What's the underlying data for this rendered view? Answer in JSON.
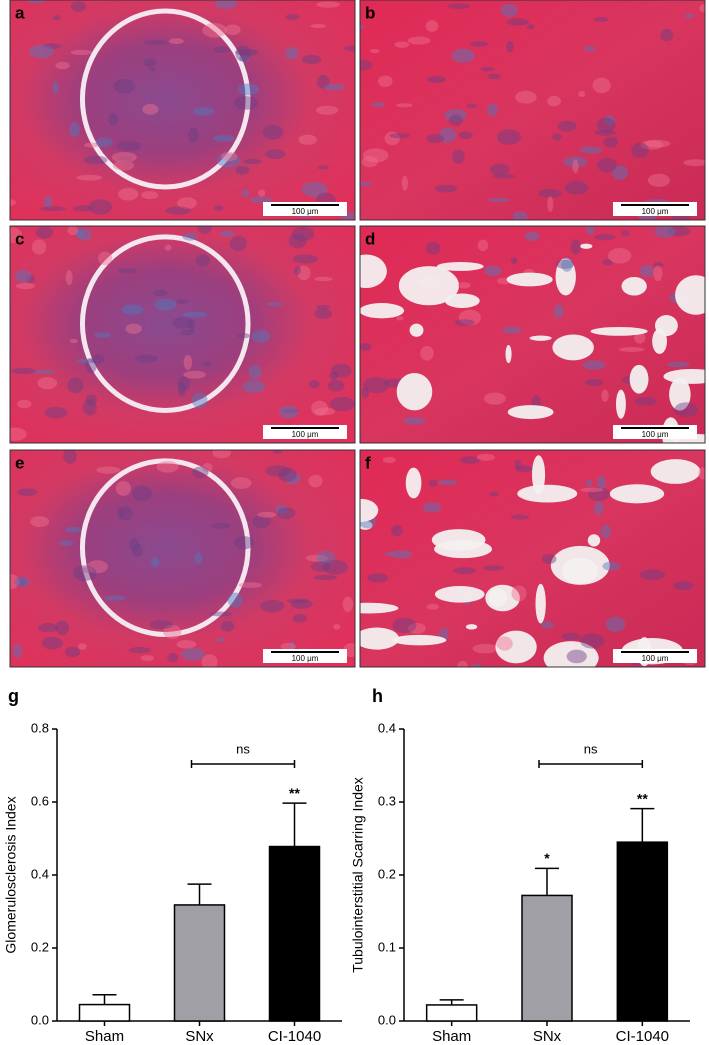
{
  "panels": [
    {
      "letter": "a",
      "scale": "100 μm"
    },
    {
      "letter": "b",
      "scale": "100 μm"
    },
    {
      "letter": "c",
      "scale": "100 μm"
    },
    {
      "letter": "d",
      "scale": "100 μm"
    },
    {
      "letter": "e",
      "scale": "100 μm"
    },
    {
      "letter": "f",
      "scale": "100 μm"
    }
  ],
  "chart_data": [
    {
      "type": "bar",
      "panel": "g",
      "y_label": "Glomerulosclerosis Index",
      "categories": [
        "Sham",
        "SNx",
        "CI-1040"
      ],
      "values": [
        0.045,
        0.318,
        0.478
      ],
      "errors": [
        0.027,
        0.057,
        0.119
      ],
      "colors": [
        "#ffffff",
        "#a09fa6",
        "#000000"
      ],
      "significance": [
        null,
        null,
        "**"
      ],
      "bracket_label": "ns",
      "ylim": [
        0,
        0.8
      ],
      "yticks": [
        {
          "value": 0,
          "label": "0.0"
        },
        0.2,
        0.4,
        0.6,
        0.8
      ]
    },
    {
      "type": "bar",
      "panel": "h",
      "y_label": "Tubulointerstitial Scarring Index",
      "categories": [
        "Sham",
        "SNx",
        "CI-1040"
      ],
      "values": [
        0.022,
        0.172,
        0.245
      ],
      "errors": [
        0.007,
        0.037,
        0.046
      ],
      "colors": [
        "#ffffff",
        "#a09fa6",
        "#000000"
      ],
      "significance": [
        null,
        "*",
        "**"
      ],
      "bracket_label": "ns",
      "ylim": [
        0,
        0.4
      ],
      "yticks": [
        {
          "value": 0,
          "label": "0.0"
        },
        0.1,
        0.2,
        0.3,
        0.4
      ]
    }
  ]
}
